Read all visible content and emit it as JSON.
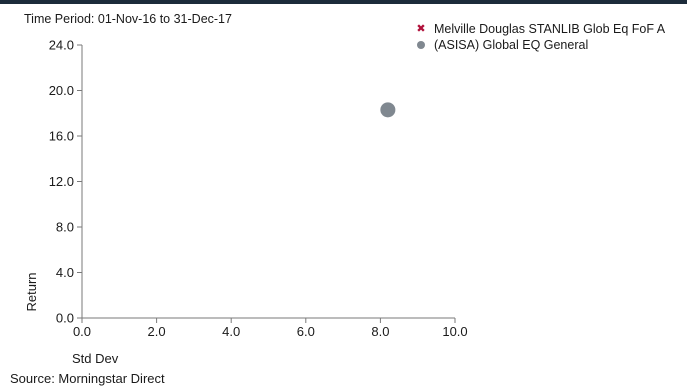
{
  "chart_data": {
    "type": "scatter",
    "period_label": "Time Period: 01-Nov-16 to 31-Dec-17",
    "source": "Source: Morningstar Direct",
    "xlabel": "Std Dev",
    "ylabel": "Return",
    "xlim": [
      0,
      10
    ],
    "ylim": [
      0,
      24
    ],
    "x_ticks": [
      0,
      2,
      4,
      6,
      8,
      10
    ],
    "y_ticks": [
      0,
      4,
      8,
      12,
      16,
      20,
      24
    ],
    "tick_format": "0.0",
    "legend_position": "top-right",
    "series": [
      {
        "name": "Melville Douglas STANLIB Glob Eq FoF A",
        "marker": "x",
        "color": "#b0103a",
        "points": []
      },
      {
        "name": "(ASISA) Global EQ General",
        "marker": "circle",
        "color": "#808890",
        "points": [
          {
            "x": 8.2,
            "y": 18.3
          }
        ]
      }
    ]
  }
}
